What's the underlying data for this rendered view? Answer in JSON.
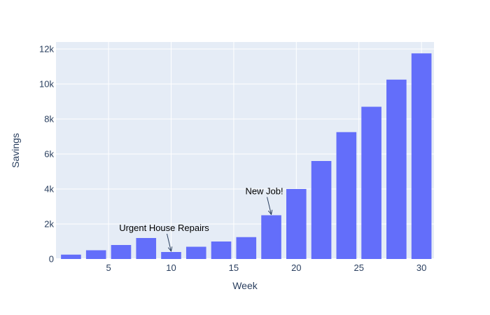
{
  "chart_data": {
    "type": "bar",
    "xlabel": "Week",
    "ylabel": "Savings",
    "x": [
      2,
      4,
      6,
      8,
      10,
      12,
      14,
      16,
      18,
      20,
      22,
      24,
      26,
      28,
      30
    ],
    "values": [
      250,
      500,
      800,
      1200,
      400,
      700,
      1000,
      1250,
      2500,
      4000,
      5600,
      7250,
      8700,
      10250,
      11750
    ],
    "xlim": [
      0.8,
      31.0
    ],
    "ylim": [
      0,
      12400
    ],
    "x_ticks": [
      5,
      10,
      15,
      20,
      25,
      30
    ],
    "x_tick_labels": [
      "5",
      "10",
      "15",
      "20",
      "25",
      "30"
    ],
    "y_ticks": [
      0,
      2000,
      4000,
      6000,
      8000,
      10000,
      12000
    ],
    "y_tick_labels": [
      "0",
      "2k",
      "4k",
      "6k",
      "8k",
      "10k",
      "12k"
    ],
    "grid": true,
    "annotations": [
      {
        "text": "Urgent House Repairs",
        "x": 10,
        "y": 400
      },
      {
        "text": "New Job!",
        "x": 18,
        "y": 2500
      }
    ]
  },
  "colors": {
    "bar": "#636efa",
    "plot_bg": "#e5ecf6",
    "grid": "#ffffff",
    "text": "#2a3f5f"
  }
}
